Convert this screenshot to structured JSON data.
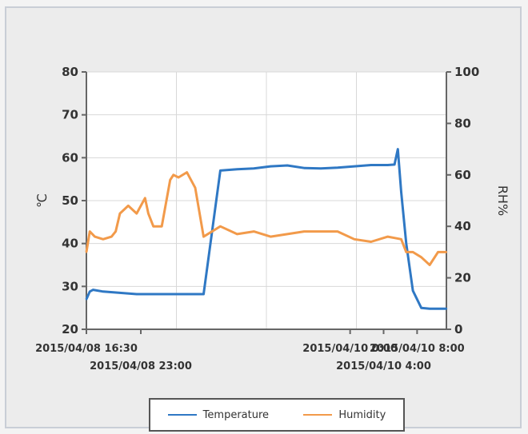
{
  "chart_data": {
    "type": "line",
    "ylabel_left": "℃",
    "ylabel_right": "RH%",
    "ylim_left": [
      20,
      80
    ],
    "ylim_right": [
      0,
      100
    ],
    "yticks_left": [
      20,
      30,
      40,
      50,
      60,
      70,
      80
    ],
    "yticks_right": [
      0,
      20,
      40,
      60,
      80,
      100
    ],
    "x_tick_labels": [
      {
        "label": "2015/04/08 16:30",
        "x": 0
      },
      {
        "label": "2015/04/08 23:00",
        "x": 6.5
      },
      {
        "label": "2015/04/10 0:00",
        "x": 31.5
      },
      {
        "label": "2015/04/10 4:00",
        "x": 35.5
      },
      {
        "label": "2015/04/10 8:00",
        "x": 39.5
      }
    ],
    "xlim": [
      0,
      43
    ],
    "grid": true,
    "legend_position": "bottom",
    "series": [
      {
        "name": "Temperature",
        "color": "#2f78c4",
        "axis": "left",
        "x": [
          0,
          0.4,
          0.8,
          2,
          4,
          6,
          8,
          10,
          12,
          13,
          14,
          16,
          18,
          20,
          22,
          24,
          26,
          28,
          30,
          32,
          34,
          36,
          36.8,
          37.2,
          37.6,
          38.2,
          39,
          40,
          41,
          42,
          43
        ],
        "y": [
          27,
          28.8,
          29.2,
          28.8,
          28.5,
          28.2,
          28.2,
          28.2,
          28.2,
          28.2,
          28.2,
          57,
          57.3,
          57.5,
          58,
          58.2,
          57.6,
          57.5,
          57.7,
          58,
          58.3,
          58.3,
          58.4,
          62,
          52,
          40,
          29,
          25,
          24.8,
          24.8,
          24.8
        ]
      },
      {
        "name": "Humidity",
        "color": "#f29a4a",
        "axis": "right",
        "x": [
          0,
          0.4,
          1,
          2,
          3,
          3.5,
          4,
          5,
          6,
          7,
          7.4,
          8,
          9,
          10,
          10.4,
          11,
          12,
          13,
          14,
          16,
          18,
          20,
          22,
          24,
          26,
          28,
          30,
          32,
          34,
          36,
          36.8,
          37.6,
          38.2,
          39,
          40,
          41,
          42,
          43
        ],
        "y": [
          30,
          38,
          36,
          35,
          36,
          38,
          45,
          48,
          45,
          51,
          45,
          40,
          40,
          58,
          60,
          59,
          61,
          55,
          36,
          40,
          37,
          38,
          36,
          37,
          38,
          38,
          38,
          35,
          34,
          36,
          35.5,
          35,
          30,
          30,
          28,
          25,
          30,
          30
        ]
      }
    ]
  }
}
